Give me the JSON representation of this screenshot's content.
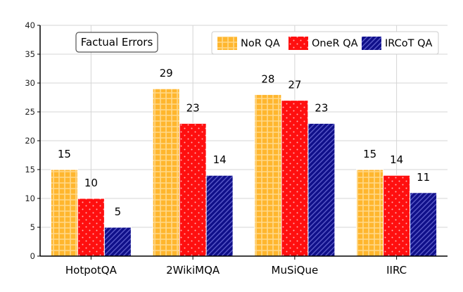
{
  "chart_data": {
    "type": "bar",
    "title": "",
    "annotation": "Factual Errors",
    "xlabel": "",
    "ylabel": "",
    "categories": [
      "HotpotQA",
      "2WikiMQA",
      "MuSiQue",
      "IIRC"
    ],
    "series": [
      {
        "name": "NoR QA",
        "values": [
          15,
          29,
          28,
          15
        ],
        "color": "#FFB62E",
        "pattern": "grid"
      },
      {
        "name": "OneR QA",
        "values": [
          10,
          23,
          27,
          14
        ],
        "color": "#FF0F0F",
        "pattern": "dots"
      },
      {
        "name": "IRCoT QA",
        "values": [
          5,
          14,
          23,
          11
        ],
        "color": "#10108A",
        "pattern": "diagonal"
      }
    ],
    "ylim": [
      0,
      40
    ],
    "yticks": [
      0,
      5,
      10,
      15,
      20,
      25,
      30,
      35,
      40
    ],
    "grid": true,
    "legend_position": "top-right",
    "data_labels": true
  }
}
